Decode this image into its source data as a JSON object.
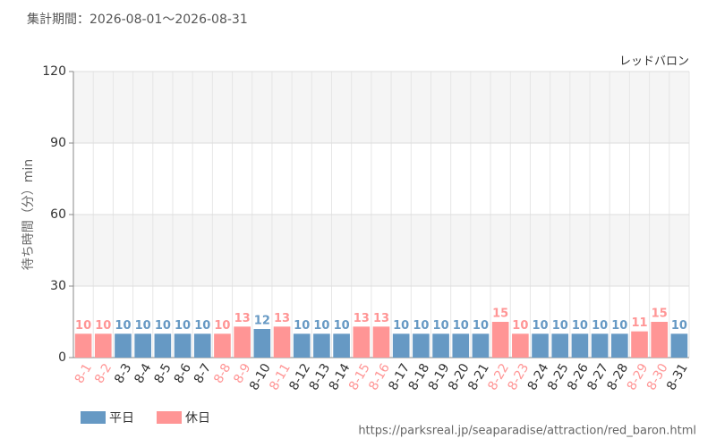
{
  "chart_data": {
    "type": "bar",
    "title": "集計期間：2026-08-01～2026-08-31",
    "annotation": "レッドバロン",
    "y_label": "待ち時間（分）min",
    "source": "https://parksreal.jp/seaparadise/attraction/red_baron.html",
    "categories": [
      "8-1",
      "8-2",
      "8-3",
      "8-4",
      "8-5",
      "8-6",
      "8-7",
      "8-8",
      "8-9",
      "8-10",
      "8-11",
      "8-12",
      "8-13",
      "8-14",
      "8-15",
      "8-16",
      "8-17",
      "8-18",
      "8-19",
      "8-20",
      "8-21",
      "8-22",
      "8-23",
      "8-24",
      "8-25",
      "8-26",
      "8-27",
      "8-28",
      "8-29",
      "8-30",
      "8-31"
    ],
    "series": [
      {
        "name": "平日",
        "color": "#6699c4",
        "values": [
          null,
          null,
          10,
          10,
          10,
          10,
          10,
          null,
          null,
          12,
          null,
          10,
          10,
          10,
          null,
          null,
          10,
          10,
          10,
          10,
          10,
          null,
          null,
          10,
          10,
          10,
          10,
          10,
          null,
          null,
          10
        ]
      },
      {
        "name": "休日",
        "color": "#ff9595",
        "values": [
          10,
          10,
          null,
          null,
          null,
          null,
          null,
          10,
          13,
          null,
          13,
          null,
          null,
          null,
          13,
          13,
          null,
          null,
          null,
          null,
          null,
          15,
          10,
          null,
          null,
          null,
          null,
          null,
          11,
          15,
          null
        ]
      }
    ],
    "ylim": [
      0,
      120
    ],
    "yticks": [
      0,
      30,
      60,
      90,
      120
    ],
    "grid": true
  }
}
